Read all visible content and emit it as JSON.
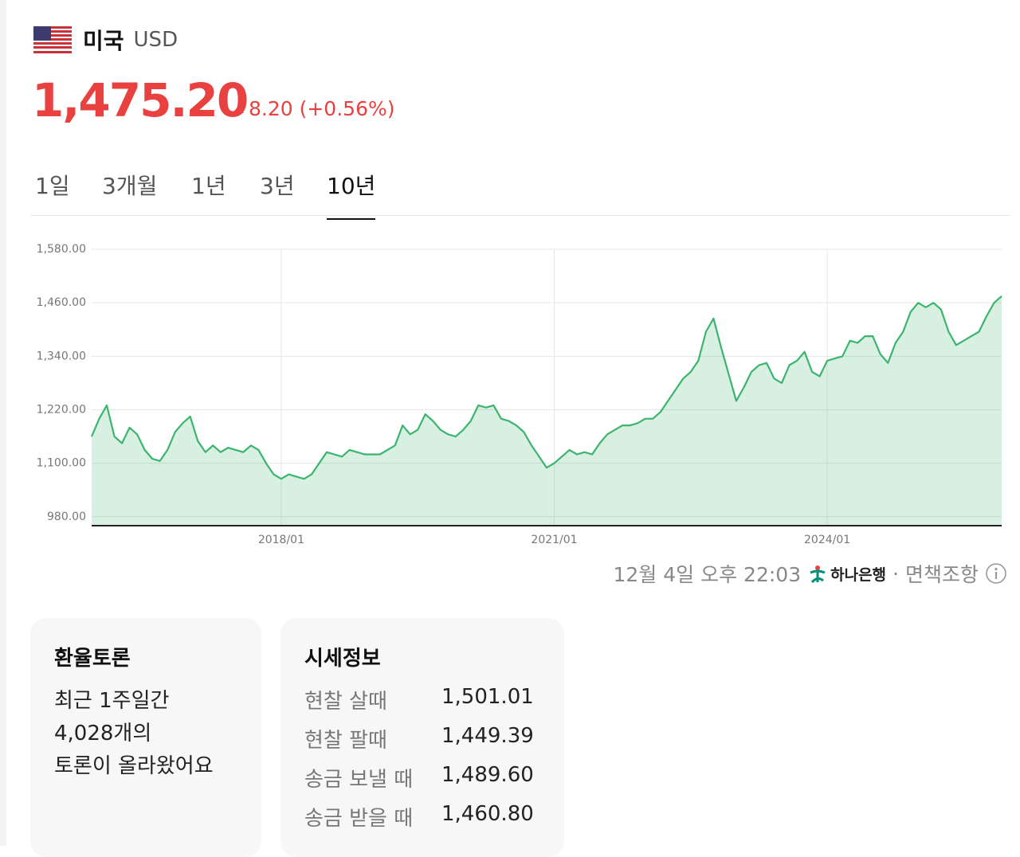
{
  "header": {
    "country": "미국",
    "currency": "USD",
    "price": "1,475.20",
    "change": "8.20 (+0.56%)"
  },
  "tabs": [
    "1일",
    "3개월",
    "1년",
    "3년",
    "10년"
  ],
  "chart_data": {
    "type": "line",
    "color": "#3cb46e",
    "x": [
      "2015/12",
      "2016/01",
      "2016/02",
      "2016/03",
      "2016/04",
      "2016/05",
      "2016/06",
      "2016/07",
      "2016/08",
      "2016/09",
      "2016/10",
      "2016/11",
      "2016/12",
      "2017/01",
      "2017/02",
      "2017/03",
      "2017/04",
      "2017/05",
      "2017/06",
      "2017/07",
      "2017/08",
      "2017/09",
      "2017/10",
      "2017/11",
      "2017/12",
      "2018/01",
      "2018/02",
      "2018/03",
      "2018/04",
      "2018/05",
      "2018/06",
      "2018/07",
      "2018/08",
      "2018/09",
      "2018/10",
      "2018/11",
      "2018/12",
      "2019/01",
      "2019/02",
      "2019/03",
      "2019/04",
      "2019/05",
      "2019/06",
      "2019/07",
      "2019/08",
      "2019/09",
      "2019/10",
      "2019/11",
      "2019/12",
      "2020/01",
      "2020/02",
      "2020/03",
      "2020/04",
      "2020/05",
      "2020/06",
      "2020/07",
      "2020/08",
      "2020/09",
      "2020/10",
      "2020/11",
      "2020/12",
      "2021/01",
      "2021/02",
      "2021/03",
      "2021/04",
      "2021/05",
      "2021/06",
      "2021/07",
      "2021/08",
      "2021/09",
      "2021/10",
      "2021/11",
      "2021/12",
      "2022/01",
      "2022/02",
      "2022/03",
      "2022/04",
      "2022/05",
      "2022/06",
      "2022/07",
      "2022/08",
      "2022/09",
      "2022/10",
      "2022/11",
      "2022/12",
      "2023/01",
      "2023/02",
      "2023/03",
      "2023/04",
      "2023/05",
      "2023/06",
      "2023/07",
      "2023/08",
      "2023/09",
      "2023/10",
      "2023/11",
      "2023/12",
      "2024/01",
      "2024/02",
      "2024/03",
      "2024/04",
      "2024/05",
      "2024/06",
      "2024/07",
      "2024/08",
      "2024/09",
      "2024/10",
      "2024/11",
      "2024/12",
      "2025/01",
      "2025/02",
      "2025/03",
      "2025/04",
      "2025/05",
      "2025/06",
      "2025/07",
      "2025/08",
      "2025/09",
      "2025/10",
      "2025/11",
      "2025/12"
    ],
    "values": [
      1160,
      1200,
      1230,
      1160,
      1145,
      1180,
      1165,
      1130,
      1110,
      1105,
      1130,
      1170,
      1190,
      1205,
      1150,
      1125,
      1140,
      1125,
      1135,
      1130,
      1125,
      1140,
      1130,
      1100,
      1075,
      1065,
      1075,
      1070,
      1065,
      1075,
      1100,
      1125,
      1120,
      1115,
      1130,
      1125,
      1120,
      1120,
      1120,
      1130,
      1140,
      1185,
      1165,
      1175,
      1210,
      1195,
      1175,
      1165,
      1160,
      1175,
      1195,
      1230,
      1225,
      1230,
      1200,
      1195,
      1185,
      1170,
      1140,
      1115,
      1090,
      1100,
      1115,
      1130,
      1120,
      1125,
      1120,
      1145,
      1165,
      1175,
      1185,
      1185,
      1190,
      1200,
      1200,
      1215,
      1240,
      1265,
      1290,
      1305,
      1330,
      1395,
      1425,
      1360,
      1300,
      1240,
      1270,
      1305,
      1320,
      1325,
      1290,
      1280,
      1320,
      1330,
      1350,
      1305,
      1295,
      1330,
      1335,
      1340,
      1375,
      1370,
      1385,
      1385,
      1345,
      1325,
      1370,
      1395,
      1440,
      1460,
      1450,
      1460,
      1445,
      1395,
      1365,
      1375,
      1385,
      1395,
      1430,
      1460,
      1475
    ],
    "xticks": [
      "2018/01",
      "2021/01",
      "2024/01"
    ],
    "ylim": [
      960,
      1580
    ],
    "yticks": [
      {
        "value": 980,
        "label": "980.00"
      },
      {
        "value": 1100,
        "label": "1,100.00"
      },
      {
        "value": 1220,
        "label": "1,220.00"
      },
      {
        "value": 1340,
        "label": "1,340.00"
      },
      {
        "value": 1460,
        "label": "1,460.00"
      },
      {
        "value": 1580,
        "label": "1,580.00"
      }
    ],
    "grid": true
  },
  "footer": {
    "time": "12월 4일 오후 22:03",
    "bank": "하나은행",
    "separator": "·",
    "disclaimer": "면책조항"
  },
  "discussion": {
    "title": "환율토론",
    "lines": [
      "최근 1주일간",
      "4,028개의",
      "토론이 올라왔어요"
    ]
  },
  "rates": {
    "title": "시세정보",
    "rows": [
      [
        "현찰 살때",
        "1,501.01"
      ],
      [
        "현찰 팔때",
        "1,449.39"
      ],
      [
        "송금 보낼 때",
        "1,489.60"
      ],
      [
        "송금 받을 때",
        "1,460.80"
      ]
    ]
  }
}
